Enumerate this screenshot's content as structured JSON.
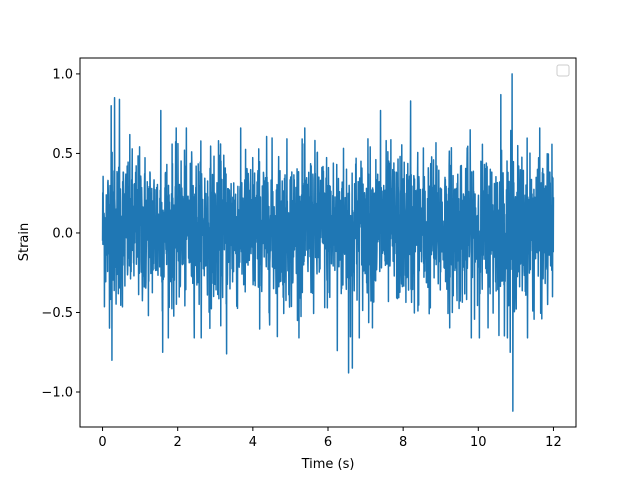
{
  "chart_data": {
    "type": "line",
    "title": "",
    "xlabel": "Time (s)",
    "ylabel": "Strain",
    "xlim": [
      -0.6,
      12.6
    ],
    "ylim": [
      -1.22,
      1.1
    ],
    "xticks": [
      0,
      2,
      4,
      6,
      8,
      10,
      12
    ],
    "xtick_labels": [
      "0",
      "2",
      "4",
      "6",
      "8",
      "10",
      "12"
    ],
    "yticks": [
      -1.0,
      -0.5,
      0.0,
      0.5,
      1.0
    ],
    "ytick_labels": [
      "−1.0",
      "−0.5",
      "0.0",
      "0.5",
      "1.0"
    ],
    "grid": false,
    "legend": {
      "placement": "top-right",
      "entries": []
    },
    "series": [
      {
        "color": "#1f77b4",
        "x_range": [
          0,
          12
        ],
        "sample_count": 2400,
        "typical_band": [
          -0.45,
          0.5
        ],
        "notable_peaks": [
          {
            "x": 0.23,
            "y": 0.8
          },
          {
            "x": 0.32,
            "y": 0.85
          },
          {
            "x": 0.45,
            "y": 0.84
          },
          {
            "x": 1.55,
            "y": 0.77
          },
          {
            "x": 7.4,
            "y": 0.77
          },
          {
            "x": 8.2,
            "y": 0.83
          },
          {
            "x": 10.6,
            "y": 0.87
          },
          {
            "x": 10.9,
            "y": 1.0
          }
        ],
        "notable_troughs": [
          {
            "x": 0.25,
            "y": -0.8
          },
          {
            "x": 1.6,
            "y": -0.75
          },
          {
            "x": 3.3,
            "y": -0.76
          },
          {
            "x": 6.25,
            "y": -0.74
          },
          {
            "x": 6.55,
            "y": -0.88
          },
          {
            "x": 6.65,
            "y": -0.85
          },
          {
            "x": 10.85,
            "y": -0.75
          },
          {
            "x": 10.92,
            "y": -1.12
          }
        ]
      }
    ]
  }
}
